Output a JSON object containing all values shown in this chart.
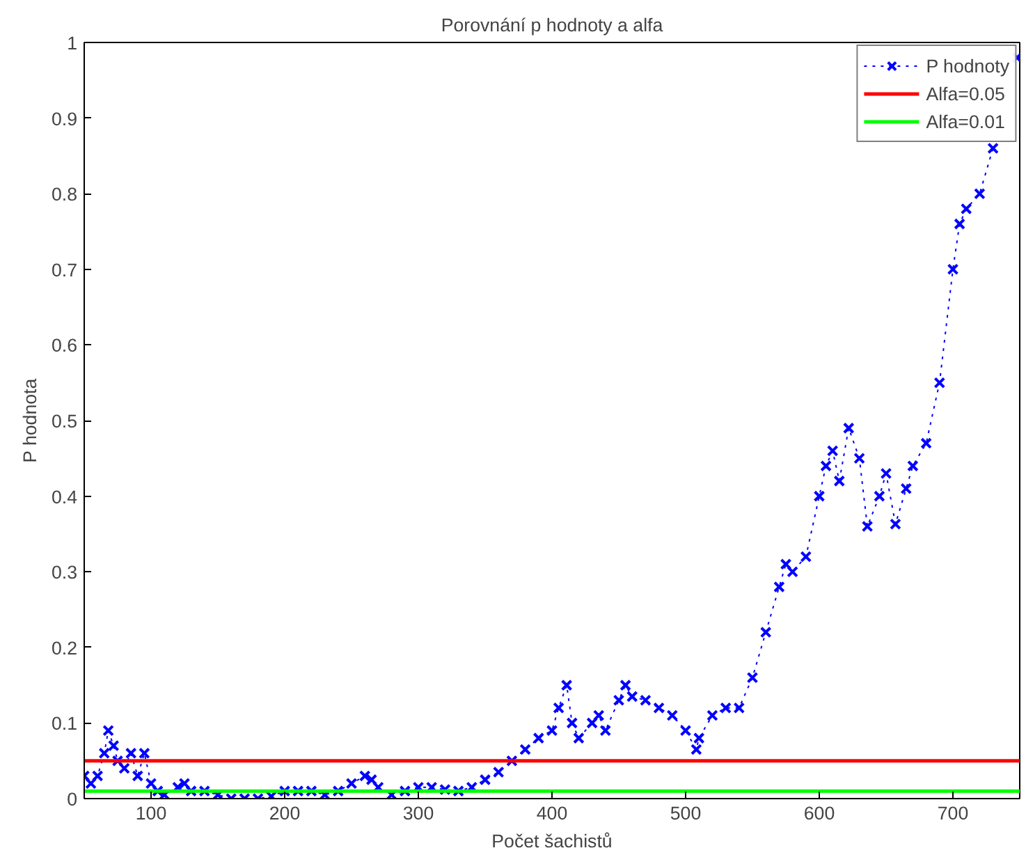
{
  "chart_data": {
    "type": "line",
    "title": "Porovnání p hodnoty a alfa",
    "xlabel": "Počet šachistů",
    "ylabel": "P hodnota",
    "xlim": [
      50,
      750
    ],
    "ylim": [
      0,
      1
    ],
    "xticks": [
      100,
      200,
      300,
      400,
      500,
      600,
      700
    ],
    "yticks": [
      0,
      0.1,
      0.2,
      0.3,
      0.4,
      0.5,
      0.6,
      0.7,
      0.8,
      0.9,
      1
    ],
    "grid": false,
    "legend": "top right",
    "series": [
      {
        "name": "P hodnoty",
        "color": "#0000ff",
        "marker": "cross",
        "line_style": "dotted",
        "x": [
          50,
          55,
          60,
          65,
          68,
          72,
          75,
          80,
          85,
          90,
          95,
          100,
          105,
          110,
          120,
          125,
          130,
          140,
          150,
          160,
          170,
          180,
          190,
          200,
          210,
          220,
          230,
          240,
          250,
          260,
          265,
          270,
          280,
          290,
          300,
          310,
          320,
          330,
          340,
          350,
          360,
          370,
          380,
          390,
          400,
          405,
          411,
          415,
          420,
          430,
          435,
          440,
          450,
          455,
          460,
          470,
          480,
          490,
          500,
          508,
          510,
          520,
          530,
          540,
          550,
          560,
          570,
          575,
          580,
          590,
          600,
          605,
          610,
          615,
          622,
          630,
          636,
          645,
          650,
          657,
          665,
          670,
          680,
          690,
          700,
          705,
          710,
          720,
          730,
          740,
          748
        ],
        "values": [
          0.03,
          0.02,
          0.03,
          0.06,
          0.09,
          0.07,
          0.05,
          0.04,
          0.06,
          0.03,
          0.06,
          0.02,
          0.01,
          0.005,
          0.015,
          0.02,
          0.01,
          0.01,
          0.005,
          0,
          0,
          0,
          0.003,
          0.01,
          0.01,
          0.01,
          0.005,
          0.01,
          0.02,
          0.03,
          0.025,
          0.015,
          0.005,
          0.01,
          0.015,
          0.015,
          0.012,
          0.01,
          0.015,
          0.025,
          0.035,
          0.05,
          0.065,
          0.08,
          0.09,
          0.12,
          0.15,
          0.1,
          0.08,
          0.1,
          0.11,
          0.09,
          0.13,
          0.15,
          0.135,
          0.13,
          0.12,
          0.11,
          0.09,
          0.065,
          0.08,
          0.11,
          0.12,
          0.12,
          0.16,
          0.22,
          0.28,
          0.31,
          0.3,
          0.32,
          0.4,
          0.44,
          0.46,
          0.42,
          0.49,
          0.45,
          0.36,
          0.4,
          0.43,
          0.363,
          0.41,
          0.44,
          0.47,
          0.55,
          0.7,
          0.76,
          0.78,
          0.8,
          0.86,
          null,
          0.98
        ]
      },
      {
        "name": "Alfa=0.05",
        "color": "#ff0000",
        "marker": "none",
        "line_style": "solid",
        "x": [
          50,
          750
        ],
        "values": [
          0.05,
          0.05
        ]
      },
      {
        "name": "Alfa=0.01",
        "color": "#00ff00",
        "marker": "none",
        "line_style": "solid",
        "x": [
          50,
          750
        ],
        "values": [
          0.01,
          0.01
        ]
      }
    ]
  }
}
